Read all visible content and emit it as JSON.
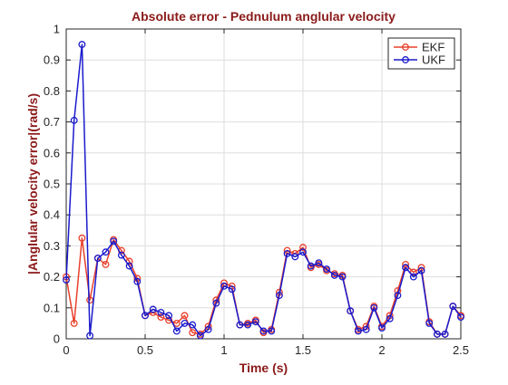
{
  "chart_data": {
    "type": "line",
    "title": "Absolute error - Pednulum anglular velocity",
    "xlabel": "Time (s)",
    "ylabel": "|Anglular velocity error|(rad/s)",
    "xlim": [
      0,
      2.5
    ],
    "ylim": [
      0,
      1
    ],
    "xticks": [
      "0",
      "0.5",
      "1",
      "1.5",
      "2",
      "2.5"
    ],
    "yticks": [
      "0",
      "0.1",
      "0.2",
      "0.3",
      "0.4",
      "0.5",
      "0.6",
      "0.7",
      "0.8",
      "0.9",
      "1"
    ],
    "grid": true,
    "legend_position": "top-right",
    "title_color": "#8b1a1a",
    "x": [
      0,
      0.05,
      0.1,
      0.15,
      0.2,
      0.25,
      0.3,
      0.35,
      0.4,
      0.45,
      0.5,
      0.55,
      0.6,
      0.65,
      0.7,
      0.75,
      0.8,
      0.85,
      0.9,
      0.95,
      1.0,
      1.05,
      1.1,
      1.15,
      1.2,
      1.25,
      1.3,
      1.35,
      1.4,
      1.45,
      1.5,
      1.55,
      1.6,
      1.65,
      1.7,
      1.75,
      1.8,
      1.85,
      1.9,
      1.95,
      2.0,
      2.05,
      2.1,
      2.15,
      2.2,
      2.25,
      2.3,
      2.35,
      2.4,
      2.45,
      2.5
    ],
    "series": [
      {
        "name": "EKF",
        "color": "#e8412c",
        "values": [
          0.2,
          0.05,
          0.325,
          0.125,
          0.26,
          0.24,
          0.32,
          0.285,
          0.25,
          0.195,
          0.075,
          0.085,
          0.07,
          0.06,
          0.05,
          0.075,
          0.02,
          0.015,
          0.04,
          0.125,
          0.18,
          0.17,
          0.045,
          0.05,
          0.06,
          0.02,
          0.03,
          0.15,
          0.285,
          0.275,
          0.295,
          0.23,
          0.24,
          0.22,
          0.21,
          0.205,
          0.09,
          0.03,
          0.04,
          0.105,
          0.04,
          0.075,
          0.155,
          0.24,
          0.215,
          0.23,
          0.055,
          0.015,
          0.015,
          0.105,
          0.075
        ]
      },
      {
        "name": "UKF",
        "color": "#1a1acc",
        "values": [
          0.19,
          0.705,
          0.95,
          0.01,
          0.26,
          0.28,
          0.315,
          0.27,
          0.235,
          0.185,
          0.075,
          0.095,
          0.085,
          0.075,
          0.025,
          0.05,
          0.045,
          0.01,
          0.03,
          0.115,
          0.17,
          0.16,
          0.045,
          0.045,
          0.055,
          0.025,
          0.025,
          0.14,
          0.275,
          0.265,
          0.28,
          0.235,
          0.245,
          0.225,
          0.205,
          0.2,
          0.09,
          0.025,
          0.03,
          0.1,
          0.035,
          0.065,
          0.14,
          0.23,
          0.2,
          0.22,
          0.05,
          0.015,
          0.015,
          0.105,
          0.07
        ]
      }
    ]
  }
}
